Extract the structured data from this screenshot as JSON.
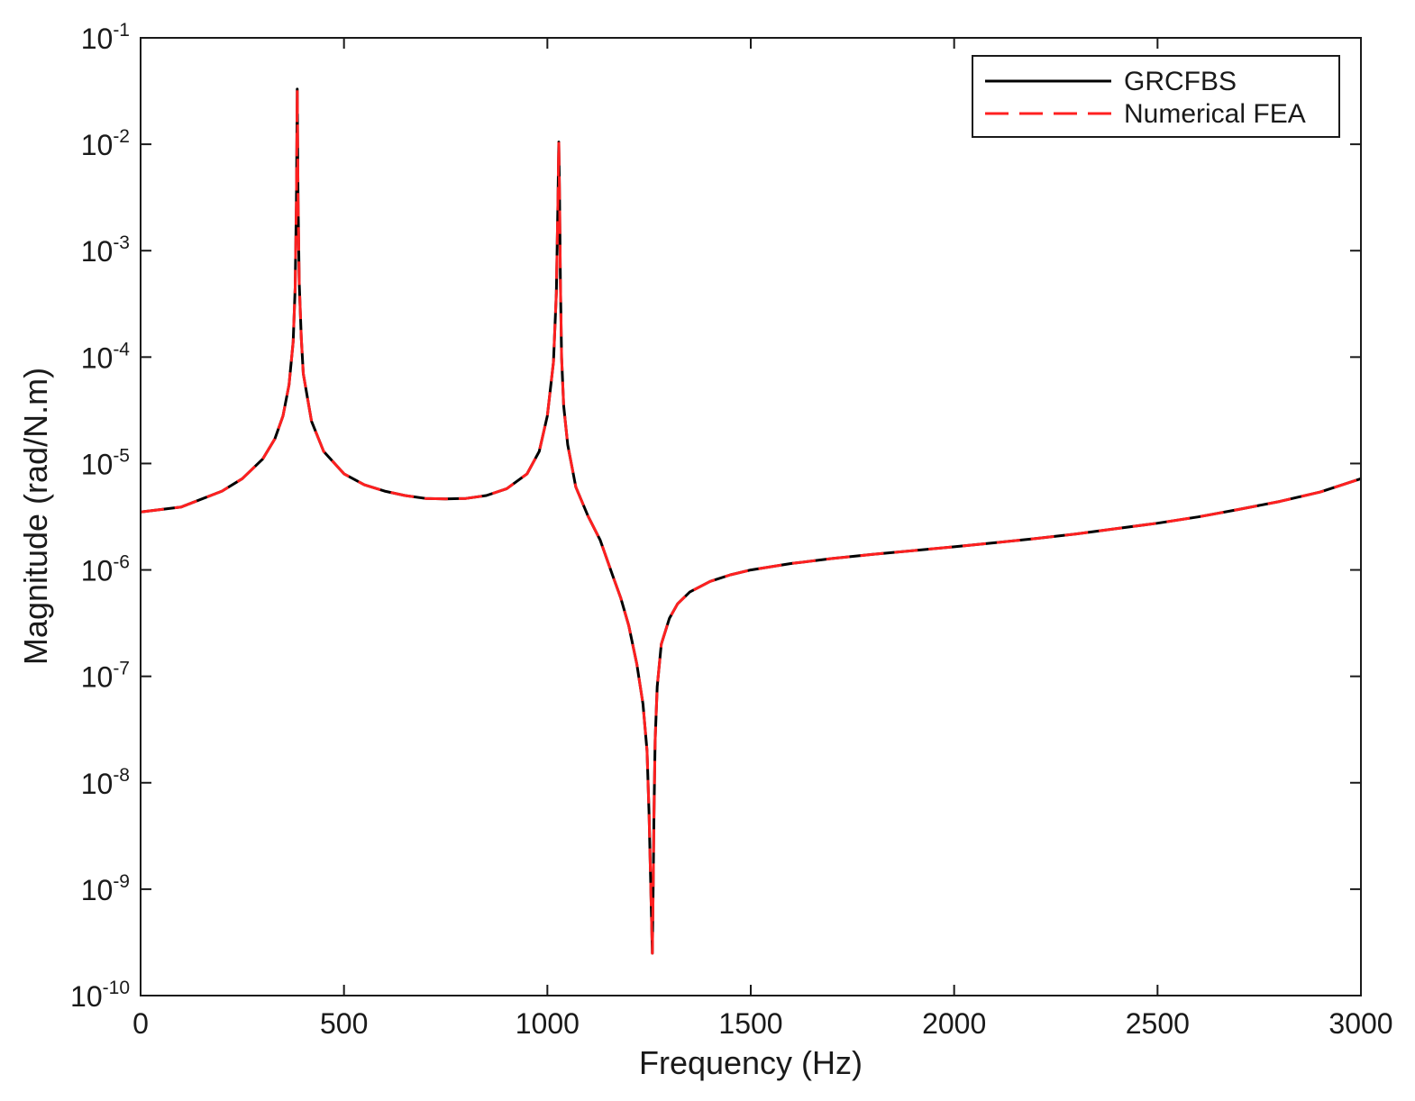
{
  "chart_data": {
    "type": "line",
    "title": "",
    "xlabel": "Frequency (Hz)",
    "ylabel": "Magnitude (rad/N.m)",
    "xscale": "linear",
    "yscale": "log",
    "xlim": [
      0,
      3000
    ],
    "ylim": [
      1e-10,
      0.1
    ],
    "grid": false,
    "legend_position": "top-right",
    "xticks": [
      0,
      500,
      1000,
      1500,
      2000,
      2500,
      3000
    ],
    "xtick_labels": [
      "0",
      "500",
      "1000",
      "1500",
      "2000",
      "2500",
      "3000"
    ],
    "yticks": [
      {
        "value": 1e-10,
        "base": "10",
        "exp": "-10"
      },
      {
        "value": 1e-09,
        "base": "10",
        "exp": "-9"
      },
      {
        "value": 1e-08,
        "base": "10",
        "exp": "-8"
      },
      {
        "value": 1e-07,
        "base": "10",
        "exp": "-7"
      },
      {
        "value": 1e-06,
        "base": "10",
        "exp": "-6"
      },
      {
        "value": 1e-05,
        "base": "10",
        "exp": "-5"
      },
      {
        "value": 0.0001,
        "base": "10",
        "exp": "-4"
      },
      {
        "value": 0.001,
        "base": "10",
        "exp": "-3"
      },
      {
        "value": 0.01,
        "base": "10",
        "exp": "-2"
      },
      {
        "value": 0.1,
        "base": "10",
        "exp": "-1"
      }
    ],
    "series": [
      {
        "name": "GRCFBS",
        "color": "#000000",
        "style": "solid"
      },
      {
        "name": "Numerical FEA",
        "color": "#ff2020",
        "style": "dashed"
      }
    ],
    "x": [
      0,
      100,
      200,
      250,
      300,
      330,
      350,
      365,
      375,
      380,
      383,
      385,
      387,
      390,
      395,
      400,
      420,
      450,
      500,
      550,
      600,
      650,
      700,
      750,
      800,
      850,
      900,
      950,
      980,
      1000,
      1015,
      1022,
      1026,
      1028,
      1030,
      1032,
      1035,
      1040,
      1050,
      1070,
      1100,
      1130,
      1160,
      1180,
      1200,
      1220,
      1235,
      1245,
      1250,
      1255,
      1258,
      1260,
      1262,
      1265,
      1270,
      1280,
      1300,
      1320,
      1350,
      1400,
      1450,
      1500,
      1600,
      1700,
      1800,
      1900,
      2000,
      2100,
      2200,
      2300,
      2400,
      2500,
      2600,
      2700,
      2800,
      2900,
      3000
    ],
    "y": [
      3.5e-06,
      3.9e-06,
      5.5e-06,
      7.2e-06,
      1.1e-05,
      1.7e-05,
      2.8e-05,
      5.5e-05,
      0.00014,
      0.00045,
      0.003,
      0.033,
      0.003,
      0.0005,
      0.00015,
      7e-05,
      2.5e-05,
      1.3e-05,
      8e-06,
      6.3e-06,
      5.5e-06,
      5e-06,
      4.7e-06,
      4.65e-06,
      4.7e-06,
      5e-06,
      5.8e-06,
      8e-06,
      1.3e-05,
      2.8e-05,
      9e-05,
      0.0004,
      0.003,
      0.0105,
      0.003,
      0.0005,
      0.0001,
      3.5e-05,
      1.5e-05,
      6e-06,
      3.2e-06,
      1.9e-06,
      9e-07,
      5.5e-07,
      3e-07,
      1.3e-07,
      5.5e-08,
      2e-08,
      5e-09,
      8e-10,
      2.5e-10,
      1e-09,
      5e-09,
      2.5e-08,
      8e-08,
      2e-07,
      3.5e-07,
      4.8e-07,
      6.2e-07,
      7.8e-07,
      9e-07,
      1e-06,
      1.15e-06,
      1.28e-06,
      1.4e-06,
      1.52e-06,
      1.65e-06,
      1.8e-06,
      1.97e-06,
      2.18e-06,
      2.45e-06,
      2.75e-06,
      3.15e-06,
      3.7e-06,
      4.4e-06,
      5.4e-06,
      7.2e-06
    ]
  }
}
